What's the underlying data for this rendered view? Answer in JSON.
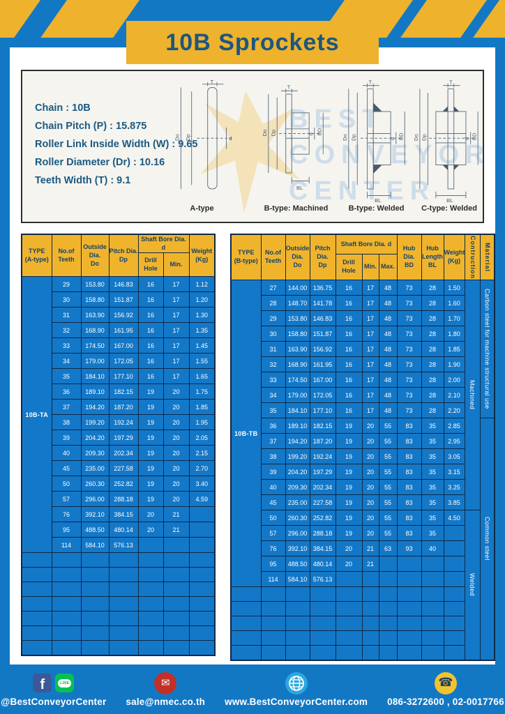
{
  "page": {
    "title": "10B Sprockets"
  },
  "colors": {
    "frame_blue": "#1378c4",
    "table_cell_blue": "#1478c8",
    "border_navy": "#0e2947",
    "banner_yellow": "#eeb22d",
    "table_header_yellow": "#f0b42c",
    "title_text": "#1d567f",
    "mail_red": "#c13128",
    "line_green": "#06c152",
    "facebook_blue": "#3b5998",
    "globe_blue": "#2ba7e0",
    "phone_yellow": "#f0c330"
  },
  "specs": {
    "lines": [
      "Chain : 10B",
      "Chain Pitch (P) : 15.875",
      "Roller Link Inside Width (W) : 9.65",
      "Roller Diameter (Dr) : 10.16",
      "Teeth Width (T) : 9.1"
    ]
  },
  "watermark": {
    "lines": [
      "BEST",
      "CONVEYOR",
      "CENTER"
    ]
  },
  "diagrams": {
    "dim_labels": {
      "t": "T",
      "do": "Do",
      "dp": "Dp",
      "d": "d",
      "bd": "BD",
      "bl": "BL"
    },
    "labels": [
      "A-type",
      "B-type: Machined",
      "B-type: Welded",
      "C-type: Welded"
    ]
  },
  "left_table": {
    "header": {
      "type": [
        "TYPE",
        "(A-type)"
      ],
      "teeth": [
        "No.of",
        "Teeth"
      ],
      "outside": [
        "Outside",
        "Dia.",
        "Do"
      ],
      "pitch": [
        "Pitch Dia.",
        "Dp"
      ],
      "shaft_group": "Shaft Bore Dia. d",
      "drill": "Drill Hole",
      "min": "Min.",
      "weight": [
        "Weight",
        "(Kg)"
      ]
    },
    "type_label": "10B-TA",
    "rows": [
      [
        "29",
        "153.80",
        "146.83",
        "16",
        "17",
        "1.12"
      ],
      [
        "30",
        "158.80",
        "151.87",
        "16",
        "17",
        "1.20"
      ],
      [
        "31",
        "163.90",
        "156.92",
        "16",
        "17",
        "1.30"
      ],
      [
        "32",
        "168.90",
        "161.95",
        "16",
        "17",
        "1.35"
      ],
      [
        "33",
        "174.50",
        "167.00",
        "16",
        "17",
        "1.45"
      ],
      [
        "34",
        "179.00",
        "172.05",
        "16",
        "17",
        "1.55"
      ],
      [
        "35",
        "184.10",
        "177.10",
        "16",
        "17",
        "1.65"
      ],
      [
        "36",
        "189.10",
        "182.15",
        "19",
        "20",
        "1.75"
      ],
      [
        "37",
        "194.20",
        "187.20",
        "19",
        "20",
        "1.85"
      ],
      [
        "38",
        "199.20",
        "192.24",
        "19",
        "20",
        "1.95"
      ],
      [
        "39",
        "204.20",
        "197.29",
        "19",
        "20",
        "2.05"
      ],
      [
        "40",
        "209.30",
        "202.34",
        "19",
        "20",
        "2.15"
      ],
      [
        "45",
        "235.00",
        "227.58",
        "19",
        "20",
        "2.70"
      ],
      [
        "50",
        "260.30",
        "252.82",
        "19",
        "20",
        "3.40"
      ],
      [
        "57",
        "296.00",
        "288.18",
        "19",
        "20",
        "4.59"
      ],
      [
        "76",
        "392.10",
        "384.15",
        "20",
        "21",
        ""
      ],
      [
        "95",
        "488.50",
        "480.14",
        "20",
        "21",
        ""
      ],
      [
        "114",
        "584.10",
        "576.13",
        "",
        "",
        ""
      ]
    ],
    "empty_row_count": 7
  },
  "right_table": {
    "header": {
      "type": [
        "TYPE",
        "(B-type)"
      ],
      "teeth": [
        "No.of",
        "Teeth"
      ],
      "outside": [
        "Outside",
        "Dia.",
        "Do"
      ],
      "pitch": [
        "Pitch Dia.",
        "Dp"
      ],
      "shaft_group": "Shaft Bore Dia. d",
      "drill": "Drill Hole",
      "min": "Min.",
      "max": "Max.",
      "hub_dia": [
        "Hub Dia.",
        "BD"
      ],
      "hub_len": [
        "Hub",
        "Length",
        "BL"
      ],
      "weight": [
        "Weight",
        "(Kg)"
      ],
      "construction": "Contruction",
      "material": "Material"
    },
    "type_label": "10B-TB",
    "rows": [
      [
        "27",
        "144.00",
        "136.75",
        "16",
        "17",
        "48",
        "73",
        "28",
        "1.50"
      ],
      [
        "28",
        "148.70",
        "141.78",
        "16",
        "17",
        "48",
        "73",
        "28",
        "1.60"
      ],
      [
        "29",
        "153.80",
        "146.83",
        "16",
        "17",
        "48",
        "73",
        "28",
        "1.70"
      ],
      [
        "30",
        "158.80",
        "151.87",
        "16",
        "17",
        "48",
        "73",
        "28",
        "1.80"
      ],
      [
        "31",
        "163.90",
        "156.92",
        "16",
        "17",
        "48",
        "73",
        "28",
        "1.85"
      ],
      [
        "32",
        "168.90",
        "161.95",
        "16",
        "17",
        "48",
        "73",
        "28",
        "1.90"
      ],
      [
        "33",
        "174.50",
        "167.00",
        "16",
        "17",
        "48",
        "73",
        "28",
        "2.00"
      ],
      [
        "34",
        "179.00",
        "172.05",
        "16",
        "17",
        "48",
        "73",
        "28",
        "2.10"
      ],
      [
        "35",
        "184.10",
        "177.10",
        "16",
        "17",
        "48",
        "73",
        "28",
        "2.20"
      ],
      [
        "36",
        "189.10",
        "182.15",
        "19",
        "20",
        "55",
        "83",
        "35",
        "2.85"
      ],
      [
        "37",
        "194.20",
        "187.20",
        "19",
        "20",
        "55",
        "83",
        "35",
        "2.95"
      ],
      [
        "38",
        "199.20",
        "192.24",
        "19",
        "20",
        "55",
        "83",
        "35",
        "3.05"
      ],
      [
        "39",
        "204.20",
        "197.29",
        "19",
        "20",
        "55",
        "83",
        "35",
        "3.15"
      ],
      [
        "40",
        "209.30",
        "202.34",
        "19",
        "20",
        "55",
        "83",
        "35",
        "3.25"
      ],
      [
        "45",
        "235.00",
        "227.58",
        "19",
        "20",
        "55",
        "83",
        "35",
        "3.85"
      ],
      [
        "50",
        "260.30",
        "252.82",
        "19",
        "20",
        "55",
        "83",
        "35",
        "4.50"
      ],
      [
        "57",
        "296.00",
        "288.18",
        "19",
        "20",
        "55",
        "83",
        "35",
        ""
      ],
      [
        "76",
        "392.10",
        "384.15",
        "20",
        "21",
        "63",
        "93",
        "40",
        ""
      ],
      [
        "95",
        "488.50",
        "480.14",
        "20",
        "21",
        "",
        "",
        "",
        ""
      ],
      [
        "114",
        "584.10",
        "576.13",
        "",
        "",
        "",
        "",
        "",
        ""
      ]
    ],
    "construction_sections": [
      {
        "label": "Machined",
        "rows": 15
      },
      {
        "label": "Welded",
        "rows": 10
      }
    ],
    "material_sections": [
      {
        "label": "Carbon steel for machine structural use",
        "rows": 9
      },
      {
        "label": "Common steel",
        "rows": 16
      }
    ],
    "empty_row_count": 5
  },
  "footer": {
    "social": "@BestConveyorCenter",
    "email": "sale@nmec.co.th",
    "website": "www.BestConveyorCenter.com",
    "phone": "086-3272600 , 02-0017766",
    "icons": {
      "facebook": "f",
      "line": "LINE",
      "mail": "✉",
      "phone": "☎"
    }
  }
}
